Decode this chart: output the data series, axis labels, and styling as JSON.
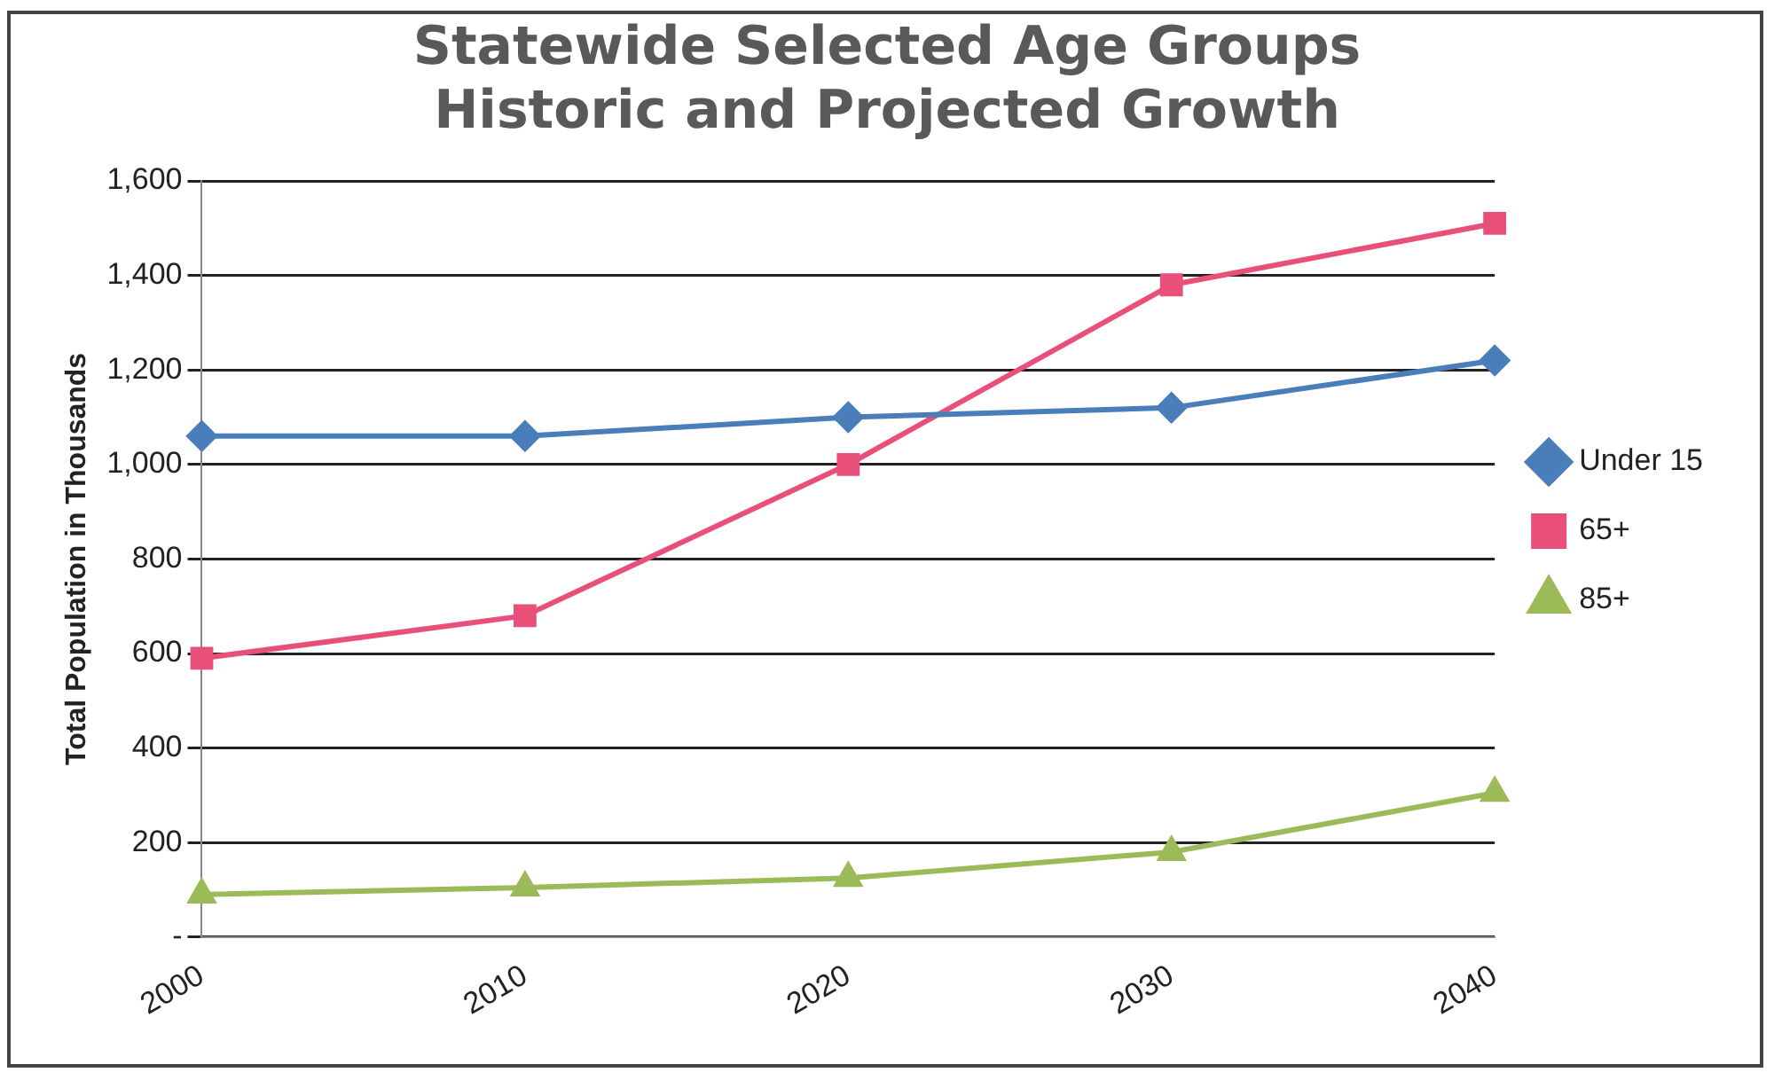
{
  "chart_data": {
    "type": "line",
    "title": "Statewide Selected Age Groups\nHistoric and Projected Growth",
    "ylabel": "Total Population in Thousands",
    "categories": [
      "2000",
      "2010",
      "2020",
      "2030",
      "2040"
    ],
    "series": [
      {
        "name": "Under 15",
        "color": "#4a7ebb",
        "marker": "diamond",
        "values": [
          1060,
          1060,
          1100,
          1120,
          1220
        ]
      },
      {
        "name": "65+",
        "color": "#e8507a",
        "marker": "square",
        "values": [
          590,
          680,
          1000,
          1380,
          1510
        ]
      },
      {
        "name": "85+",
        "color": "#9bbb59",
        "marker": "triangle",
        "values": [
          90,
          105,
          125,
          180,
          305
        ]
      }
    ],
    "ylim": [
      0,
      1600
    ],
    "yticks": [
      {
        "value": 0,
        "label": "-"
      },
      {
        "value": 200,
        "label": "200"
      },
      {
        "value": 400,
        "label": "400"
      },
      {
        "value": 600,
        "label": "600"
      },
      {
        "value": 800,
        "label": "800"
      },
      {
        "value": 1000,
        "label": "1,000"
      },
      {
        "value": 1200,
        "label": "1,200"
      },
      {
        "value": 1400,
        "label": "1,400"
      },
      {
        "value": 1600,
        "label": "1,600"
      }
    ],
    "grid": "y",
    "legend": "right",
    "line_style": "solid"
  }
}
